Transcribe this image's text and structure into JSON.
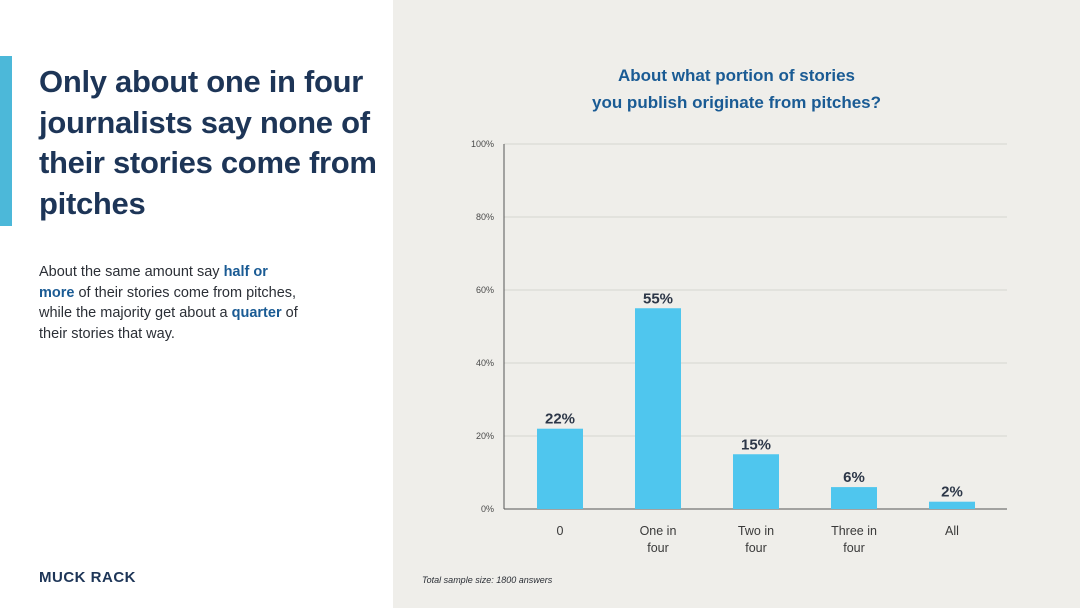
{
  "headline": "Only about one in four journalists say none of their stories come from pitches",
  "body": {
    "part1": "About the same amount say ",
    "hl1": "half or more",
    "part2": " of their stories come from pitches, while the majority get about a ",
    "hl2": "quarter",
    "part3": " of their stories that way."
  },
  "logo": "MUCK RACK",
  "footnote": "Total sample size: 1800 answers",
  "colors": {
    "bar": "#4fc6ee",
    "accent": "#4cb8d9",
    "title": "#1a5b94",
    "headline": "#1d3557"
  },
  "chart_data": {
    "type": "bar",
    "title_lines": [
      "About what portion of stories",
      "you publish originate from pitches?"
    ],
    "categories": [
      [
        "0"
      ],
      [
        "One in",
        "four"
      ],
      [
        "Two in",
        "four"
      ],
      [
        "Three in",
        "four"
      ],
      [
        "All"
      ]
    ],
    "values": [
      22,
      55,
      15,
      6,
      2
    ],
    "value_labels": [
      "22%",
      "55%",
      "15%",
      "6%",
      "2%"
    ],
    "yticks": [
      0,
      20,
      40,
      60,
      80,
      100
    ],
    "ytick_labels": [
      "0%",
      "20%",
      "40%",
      "60%",
      "80%",
      "100%"
    ],
    "ylim": [
      0,
      100
    ],
    "grid": true
  }
}
